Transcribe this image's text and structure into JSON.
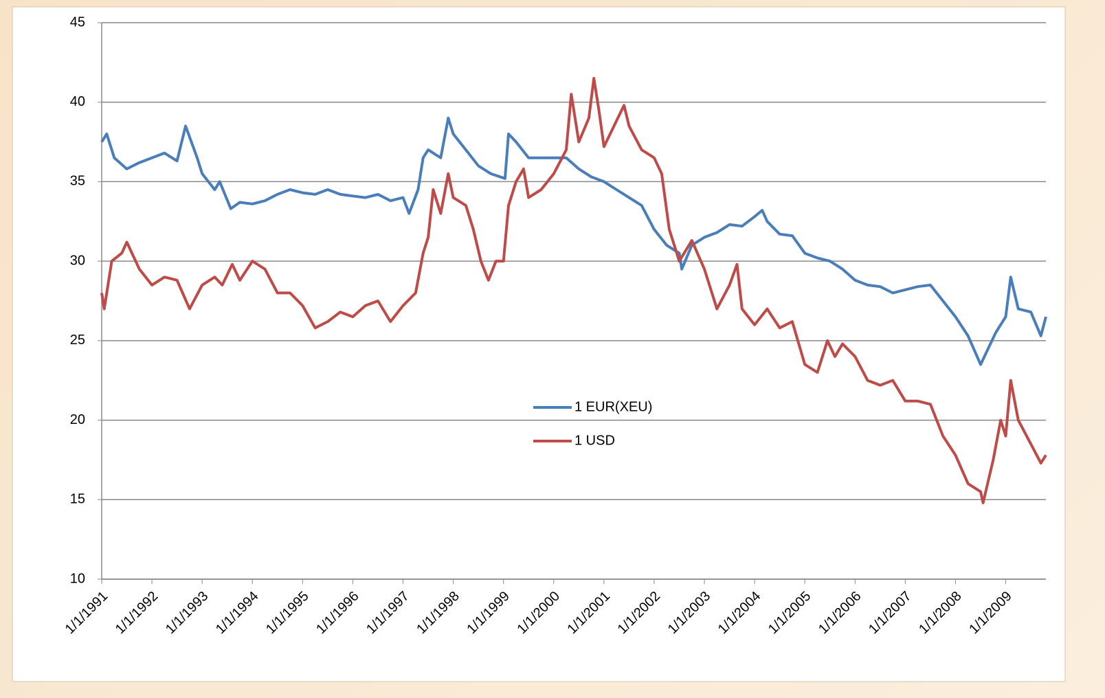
{
  "chart_data": {
    "type": "line",
    "xlim": [
      1991,
      2009.8
    ],
    "xticks": [
      {
        "value": 1991,
        "label": "1/1/1991"
      },
      {
        "value": 1992,
        "label": "1/1/1992"
      },
      {
        "value": 1993,
        "label": "1/1/1993"
      },
      {
        "value": 1994,
        "label": "1/1/1994"
      },
      {
        "value": 1995,
        "label": "1/1/1995"
      },
      {
        "value": 1996,
        "label": "1/1/1996"
      },
      {
        "value": 1997,
        "label": "1/1/1997"
      },
      {
        "value": 1998,
        "label": "1/1/1998"
      },
      {
        "value": 1999,
        "label": "1/1/1999"
      },
      {
        "value": 2000,
        "label": "1/1/2000"
      },
      {
        "value": 2001,
        "label": "1/1/2001"
      },
      {
        "value": 2002,
        "label": "1/1/2002"
      },
      {
        "value": 2003,
        "label": "1/1/2003"
      },
      {
        "value": 2004,
        "label": "1/1/2004"
      },
      {
        "value": 2005,
        "label": "1/1/2005"
      },
      {
        "value": 2006,
        "label": "1/1/2006"
      },
      {
        "value": 2007,
        "label": "1/1/2007"
      },
      {
        "value": 2008,
        "label": "1/1/2008"
      },
      {
        "value": 2009,
        "label": "1/1/2009"
      }
    ],
    "ylim": [
      10,
      45
    ],
    "yticks": [
      10,
      15,
      20,
      25,
      30,
      35,
      40,
      45
    ],
    "grid": true,
    "legend": "center",
    "series": [
      {
        "name": "1 EUR(XEU)",
        "color": "#4a7ebb",
        "x": [
          1991.0,
          1991.1,
          1991.25,
          1991.5,
          1991.75,
          1992.0,
          1992.25,
          1992.5,
          1992.67,
          1992.9,
          1993.0,
          1993.25,
          1993.35,
          1993.57,
          1993.75,
          1994.0,
          1994.25,
          1994.5,
          1994.75,
          1995.0,
          1995.25,
          1995.5,
          1995.75,
          1996.0,
          1996.25,
          1996.5,
          1996.75,
          1997.0,
          1997.12,
          1997.3,
          1997.4,
          1997.5,
          1997.75,
          1997.9,
          1998.0,
          1998.25,
          1998.5,
          1998.75,
          1999.03,
          1999.1,
          1999.25,
          1999.5,
          1999.75,
          2000.0,
          2000.25,
          2000.5,
          2000.75,
          2001.0,
          2001.25,
          2001.5,
          2001.75,
          2002.0,
          2002.25,
          2002.5,
          2002.55,
          2002.75,
          2003.0,
          2003.25,
          2003.5,
          2003.75,
          2004.0,
          2004.15,
          2004.25,
          2004.5,
          2004.75,
          2005.0,
          2005.25,
          2005.5,
          2005.75,
          2006.0,
          2006.25,
          2006.5,
          2006.75,
          2007.0,
          2007.25,
          2007.5,
          2007.75,
          2008.0,
          2008.25,
          2008.5,
          2008.65,
          2008.8,
          2009.0,
          2009.1,
          2009.25,
          2009.5,
          2009.7,
          2009.8
        ],
        "values": [
          37.5,
          38,
          36.5,
          35.8,
          36.2,
          36.5,
          36.8,
          36.3,
          38.5,
          36.5,
          35.5,
          34.5,
          35,
          33.3,
          33.7,
          33.6,
          33.8,
          34.2,
          34.5,
          34.3,
          34.2,
          34.5,
          34.2,
          34.1,
          34.0,
          34.2,
          33.8,
          34.0,
          33.0,
          34.5,
          36.5,
          37,
          36.5,
          39,
          38,
          37,
          36,
          35.5,
          35.2,
          38,
          37.5,
          36.5,
          36.5,
          36.5,
          36.5,
          35.8,
          35.3,
          35,
          34.5,
          34,
          33.5,
          32,
          31,
          30.5,
          29.5,
          31,
          31.5,
          31.8,
          32.3,
          32.2,
          32.8,
          33.2,
          32.5,
          31.7,
          31.6,
          30.5,
          30.2,
          30.0,
          29.5,
          28.8,
          28.5,
          28.4,
          28.0,
          28.2,
          28.4,
          28.5,
          27.5,
          26.5,
          25.3,
          23.5,
          24.5,
          25.5,
          26.5,
          29,
          27,
          26.8,
          25.3,
          26.5
        ]
      },
      {
        "name": "1 USD",
        "color": "#be4b48",
        "x": [
          1991.0,
          1991.05,
          1991.2,
          1991.4,
          1991.5,
          1991.75,
          1992.0,
          1992.25,
          1992.5,
          1992.75,
          1993.0,
          1993.25,
          1993.4,
          1993.6,
          1993.75,
          1994.0,
          1994.25,
          1994.5,
          1994.75,
          1995.0,
          1995.25,
          1995.5,
          1995.75,
          1996.0,
          1996.25,
          1996.5,
          1996.75,
          1997.0,
          1997.25,
          1997.4,
          1997.5,
          1997.6,
          1997.75,
          1997.9,
          1998.0,
          1998.25,
          1998.4,
          1998.55,
          1998.7,
          1998.85,
          1999.0,
          1999.1,
          1999.25,
          1999.4,
          1999.5,
          1999.75,
          2000.0,
          2000.25,
          2000.35,
          2000.5,
          2000.7,
          2000.8,
          2000.9,
          2001.0,
          2001.2,
          2001.4,
          2001.5,
          2001.75,
          2002.0,
          2002.15,
          2002.3,
          2002.5,
          2002.75,
          2003.0,
          2003.25,
          2003.5,
          2003.65,
          2003.75,
          2004.0,
          2004.25,
          2004.5,
          2004.75,
          2005.0,
          2005.25,
          2005.45,
          2005.6,
          2005.75,
          2006.0,
          2006.25,
          2006.5,
          2006.75,
          2007.0,
          2007.25,
          2007.5,
          2007.75,
          2008.0,
          2008.25,
          2008.5,
          2008.55,
          2008.75,
          2008.9,
          2009.0,
          2009.1,
          2009.25,
          2009.5,
          2009.7,
          2009.8
        ],
        "values": [
          28,
          27,
          30,
          30.5,
          31.2,
          29.5,
          28.5,
          29,
          28.8,
          27,
          28.5,
          29,
          28.5,
          29.8,
          28.8,
          30,
          29.5,
          28,
          28.0,
          27.2,
          25.8,
          26.2,
          26.8,
          26.5,
          27.2,
          27.5,
          26.2,
          27.2,
          28,
          30.5,
          31.5,
          34.5,
          33,
          35.5,
          34,
          33.5,
          32,
          30,
          28.8,
          30,
          30,
          33.5,
          35,
          35.8,
          34,
          34.5,
          35.5,
          37,
          40.5,
          37.5,
          39,
          41.5,
          39.5,
          37.2,
          38.5,
          39.8,
          38.5,
          37,
          36.5,
          35.5,
          32,
          30,
          31.3,
          29.5,
          27,
          28.5,
          29.8,
          27,
          26,
          27,
          25.8,
          26.2,
          23.5,
          23,
          25,
          24,
          24.8,
          24,
          22.5,
          22.2,
          22.5,
          21.2,
          21.2,
          21,
          19,
          17.8,
          16,
          15.5,
          14.8,
          17.5,
          20,
          19,
          22.5,
          20,
          18.5,
          17.3,
          17.8
        ]
      }
    ]
  }
}
